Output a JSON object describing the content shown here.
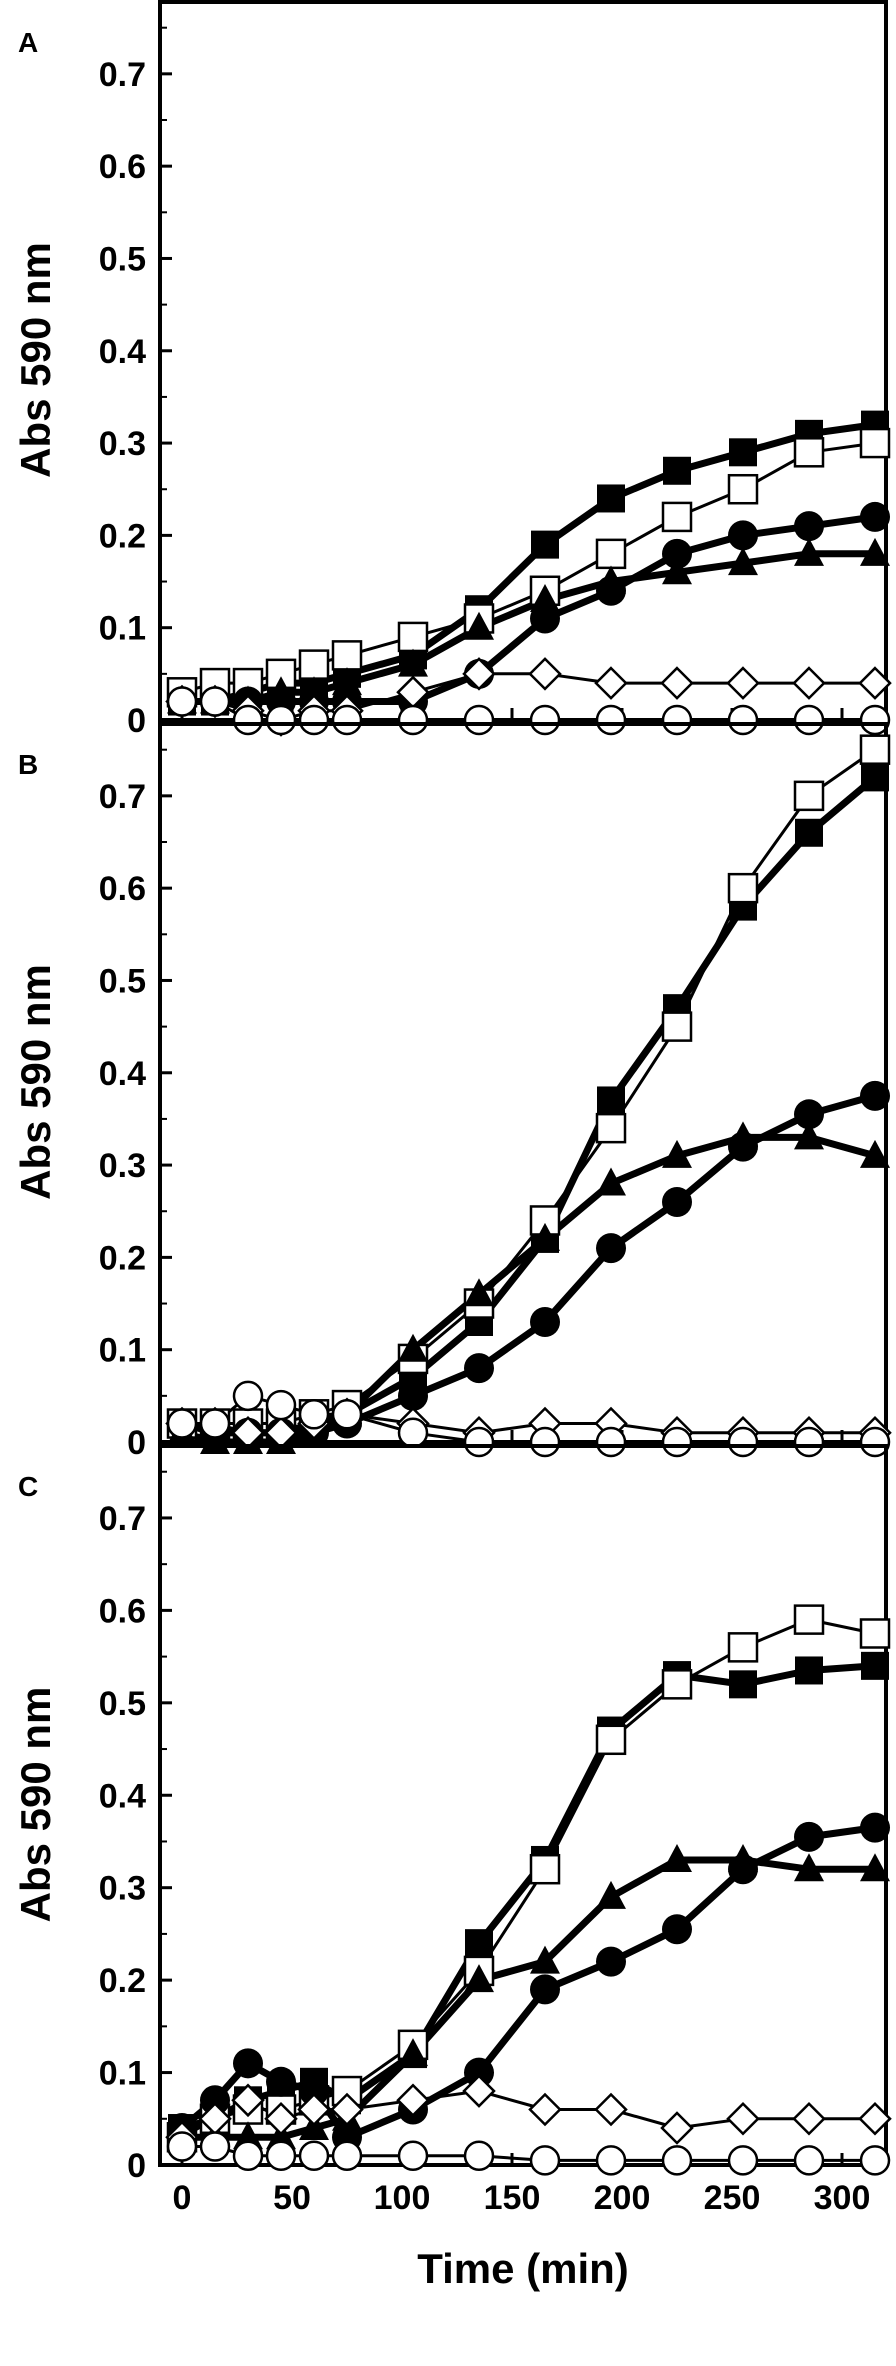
{
  "chart_data": [
    {
      "panel_label": "A",
      "type": "scatter",
      "ylabel": "Abs 590 nm",
      "xlabel": "",
      "xlim": [
        -10,
        320
      ],
      "ylim": [
        0,
        0.78
      ],
      "yticks": [
        "0",
        "0.1",
        "0.2",
        "0.3",
        "0.4",
        "0.5",
        "0.6",
        "0.7"
      ],
      "xticks": [],
      "series": [
        {
          "marker": "filled-square",
          "x": [
            0,
            15,
            30,
            45,
            60,
            75,
            105,
            135,
            165,
            195,
            225,
            255,
            285,
            315
          ],
          "y": [
            0.02,
            0.02,
            0.03,
            0.04,
            0.04,
            0.05,
            0.07,
            0.12,
            0.19,
            0.24,
            0.27,
            0.29,
            0.31,
            0.32
          ]
        },
        {
          "marker": "open-square",
          "x": [
            0,
            15,
            30,
            45,
            60,
            75,
            105,
            135,
            165,
            195,
            225,
            255,
            285,
            315
          ],
          "y": [
            0.03,
            0.04,
            0.04,
            0.05,
            0.06,
            0.07,
            0.09,
            0.11,
            0.14,
            0.18,
            0.22,
            0.25,
            0.29,
            0.3
          ]
        },
        {
          "marker": "filled-circle",
          "x": [
            0,
            15,
            30,
            45,
            60,
            75,
            105,
            135,
            165,
            195,
            225,
            255,
            285,
            315
          ],
          "y": [
            0.02,
            0.02,
            0.02,
            0.02,
            0.02,
            0.02,
            0.02,
            0.05,
            0.11,
            0.14,
            0.18,
            0.2,
            0.21,
            0.22
          ]
        },
        {
          "marker": "filled-triangle",
          "x": [
            0,
            15,
            30,
            45,
            60,
            75,
            105,
            135,
            165,
            195,
            225,
            255,
            285,
            315
          ],
          "y": [
            0.02,
            0.02,
            0.02,
            0.03,
            0.03,
            0.04,
            0.06,
            0.1,
            0.13,
            0.15,
            0.16,
            0.17,
            0.18,
            0.18
          ]
        },
        {
          "marker": "open-diamond",
          "x": [
            0,
            15,
            30,
            45,
            60,
            75,
            105,
            135,
            165,
            195,
            225,
            255,
            285,
            315
          ],
          "y": [
            0.02,
            0.02,
            0.01,
            0.0,
            0.01,
            0.01,
            0.03,
            0.05,
            0.05,
            0.04,
            0.04,
            0.04,
            0.04,
            0.04
          ]
        },
        {
          "marker": "open-circle",
          "x": [
            0,
            15,
            30,
            45,
            60,
            75,
            105,
            135,
            165,
            195,
            225,
            255,
            285,
            315
          ],
          "y": [
            0.02,
            0.02,
            0.0,
            0.0,
            0.0,
            0.0,
            0.0,
            0.0,
            0.0,
            0.0,
            0.0,
            0.0,
            0.0,
            0.0
          ]
        }
      ]
    },
    {
      "panel_label": "B",
      "type": "scatter",
      "ylabel": "Abs 590 nm",
      "xlabel": "",
      "xlim": [
        -10,
        320
      ],
      "ylim": [
        0,
        0.78
      ],
      "yticks": [
        "0",
        "0.1",
        "0.2",
        "0.3",
        "0.4",
        "0.5",
        "0.6",
        "0.7"
      ],
      "xticks": [],
      "series": [
        {
          "marker": "filled-square",
          "x": [
            0,
            15,
            30,
            45,
            60,
            75,
            105,
            135,
            165,
            195,
            225,
            255,
            285,
            315
          ],
          "y": [
            0.02,
            0.01,
            0.01,
            0.01,
            0.02,
            0.03,
            0.07,
            0.13,
            0.22,
            0.37,
            0.47,
            0.58,
            0.66,
            0.72
          ]
        },
        {
          "marker": "open-square",
          "x": [
            0,
            15,
            30,
            45,
            60,
            75,
            105,
            135,
            165,
            195,
            225,
            255,
            285,
            315
          ],
          "y": [
            0.02,
            0.02,
            0.02,
            0.02,
            0.03,
            0.04,
            0.09,
            0.15,
            0.24,
            0.34,
            0.45,
            0.6,
            0.7,
            0.75
          ]
        },
        {
          "marker": "filled-circle",
          "x": [
            0,
            15,
            30,
            45,
            60,
            75,
            105,
            135,
            165,
            195,
            225,
            255,
            285,
            315
          ],
          "y": [
            0.02,
            0.01,
            0.01,
            0.01,
            0.01,
            0.02,
            0.05,
            0.08,
            0.13,
            0.21,
            0.26,
            0.32,
            0.355,
            0.375
          ]
        },
        {
          "marker": "filled-triangle",
          "x": [
            0,
            15,
            30,
            45,
            60,
            75,
            105,
            135,
            165,
            195,
            225,
            255,
            285,
            315
          ],
          "y": [
            0.01,
            0.0,
            0.0,
            0.0,
            0.01,
            0.03,
            0.1,
            0.16,
            0.22,
            0.28,
            0.31,
            0.33,
            0.33,
            0.31
          ]
        },
        {
          "marker": "open-diamond",
          "x": [
            0,
            15,
            30,
            45,
            60,
            75,
            105,
            135,
            165,
            195,
            225,
            255,
            285,
            315
          ],
          "y": [
            0.02,
            0.02,
            0.01,
            0.01,
            0.02,
            0.03,
            0.02,
            0.01,
            0.02,
            0.02,
            0.01,
            0.01,
            0.01,
            0.01
          ]
        },
        {
          "marker": "open-circle",
          "x": [
            0,
            15,
            30,
            45,
            60,
            75,
            105,
            135,
            165,
            195,
            225,
            255,
            285,
            315
          ],
          "y": [
            0.02,
            0.02,
            0.05,
            0.04,
            0.03,
            0.03,
            0.01,
            0.0,
            0.0,
            0.0,
            0.0,
            0.0,
            0.0,
            0.0
          ]
        }
      ]
    },
    {
      "panel_label": "C",
      "type": "scatter",
      "ylabel": "Abs 590 nm",
      "xlabel": "Time (min)",
      "xlim": [
        -10,
        320
      ],
      "ylim": [
        0,
        0.78
      ],
      "yticks": [
        "0",
        "0.1",
        "0.2",
        "0.3",
        "0.4",
        "0.5",
        "0.6",
        "0.7"
      ],
      "xticks": [
        "0",
        "50",
        "100",
        "150",
        "200",
        "250",
        "300"
      ],
      "series": [
        {
          "marker": "filled-square",
          "x": [
            0,
            15,
            30,
            45,
            60,
            75,
            105,
            135,
            165,
            195,
            225,
            255,
            285,
            315
          ],
          "y": [
            0.04,
            0.05,
            0.07,
            0.08,
            0.09,
            0.07,
            0.12,
            0.24,
            0.33,
            0.47,
            0.53,
            0.52,
            0.535,
            0.54
          ]
        },
        {
          "marker": "open-square",
          "x": [
            0,
            15,
            30,
            45,
            60,
            75,
            105,
            135,
            165,
            195,
            225,
            255,
            285,
            315
          ],
          "y": [
            0.03,
            0.05,
            0.06,
            0.06,
            0.07,
            0.08,
            0.13,
            0.21,
            0.32,
            0.46,
            0.52,
            0.56,
            0.59,
            0.575
          ]
        },
        {
          "marker": "filled-circle",
          "x": [
            0,
            15,
            30,
            45,
            60,
            75,
            105,
            135,
            165,
            195,
            225,
            255,
            285,
            315
          ],
          "y": [
            0.04,
            0.07,
            0.11,
            0.09,
            0.08,
            0.03,
            0.06,
            0.1,
            0.19,
            0.22,
            0.255,
            0.32,
            0.355,
            0.365
          ]
        },
        {
          "marker": "filled-triangle",
          "x": [
            0,
            15,
            30,
            45,
            60,
            75,
            105,
            135,
            165,
            195,
            225,
            255,
            285,
            315
          ],
          "y": [
            0.03,
            0.03,
            0.03,
            0.03,
            0.04,
            0.05,
            0.12,
            0.2,
            0.22,
            0.29,
            0.33,
            0.33,
            0.32,
            0.32
          ]
        },
        {
          "marker": "open-diamond",
          "x": [
            0,
            15,
            30,
            45,
            60,
            75,
            105,
            135,
            165,
            195,
            225,
            255,
            285,
            315
          ],
          "y": [
            0.03,
            0.05,
            0.07,
            0.05,
            0.06,
            0.06,
            0.07,
            0.08,
            0.06,
            0.06,
            0.04,
            0.05,
            0.05,
            0.05
          ]
        },
        {
          "marker": "open-circle",
          "x": [
            0,
            15,
            30,
            45,
            60,
            75,
            105,
            135,
            165,
            195,
            225,
            255,
            285,
            315
          ],
          "y": [
            0.02,
            0.02,
            0.01,
            0.01,
            0.01,
            0.01,
            0.01,
            0.01,
            0.005,
            0.005,
            0.005,
            0.005,
            0.005,
            0.005
          ]
        }
      ]
    }
  ]
}
